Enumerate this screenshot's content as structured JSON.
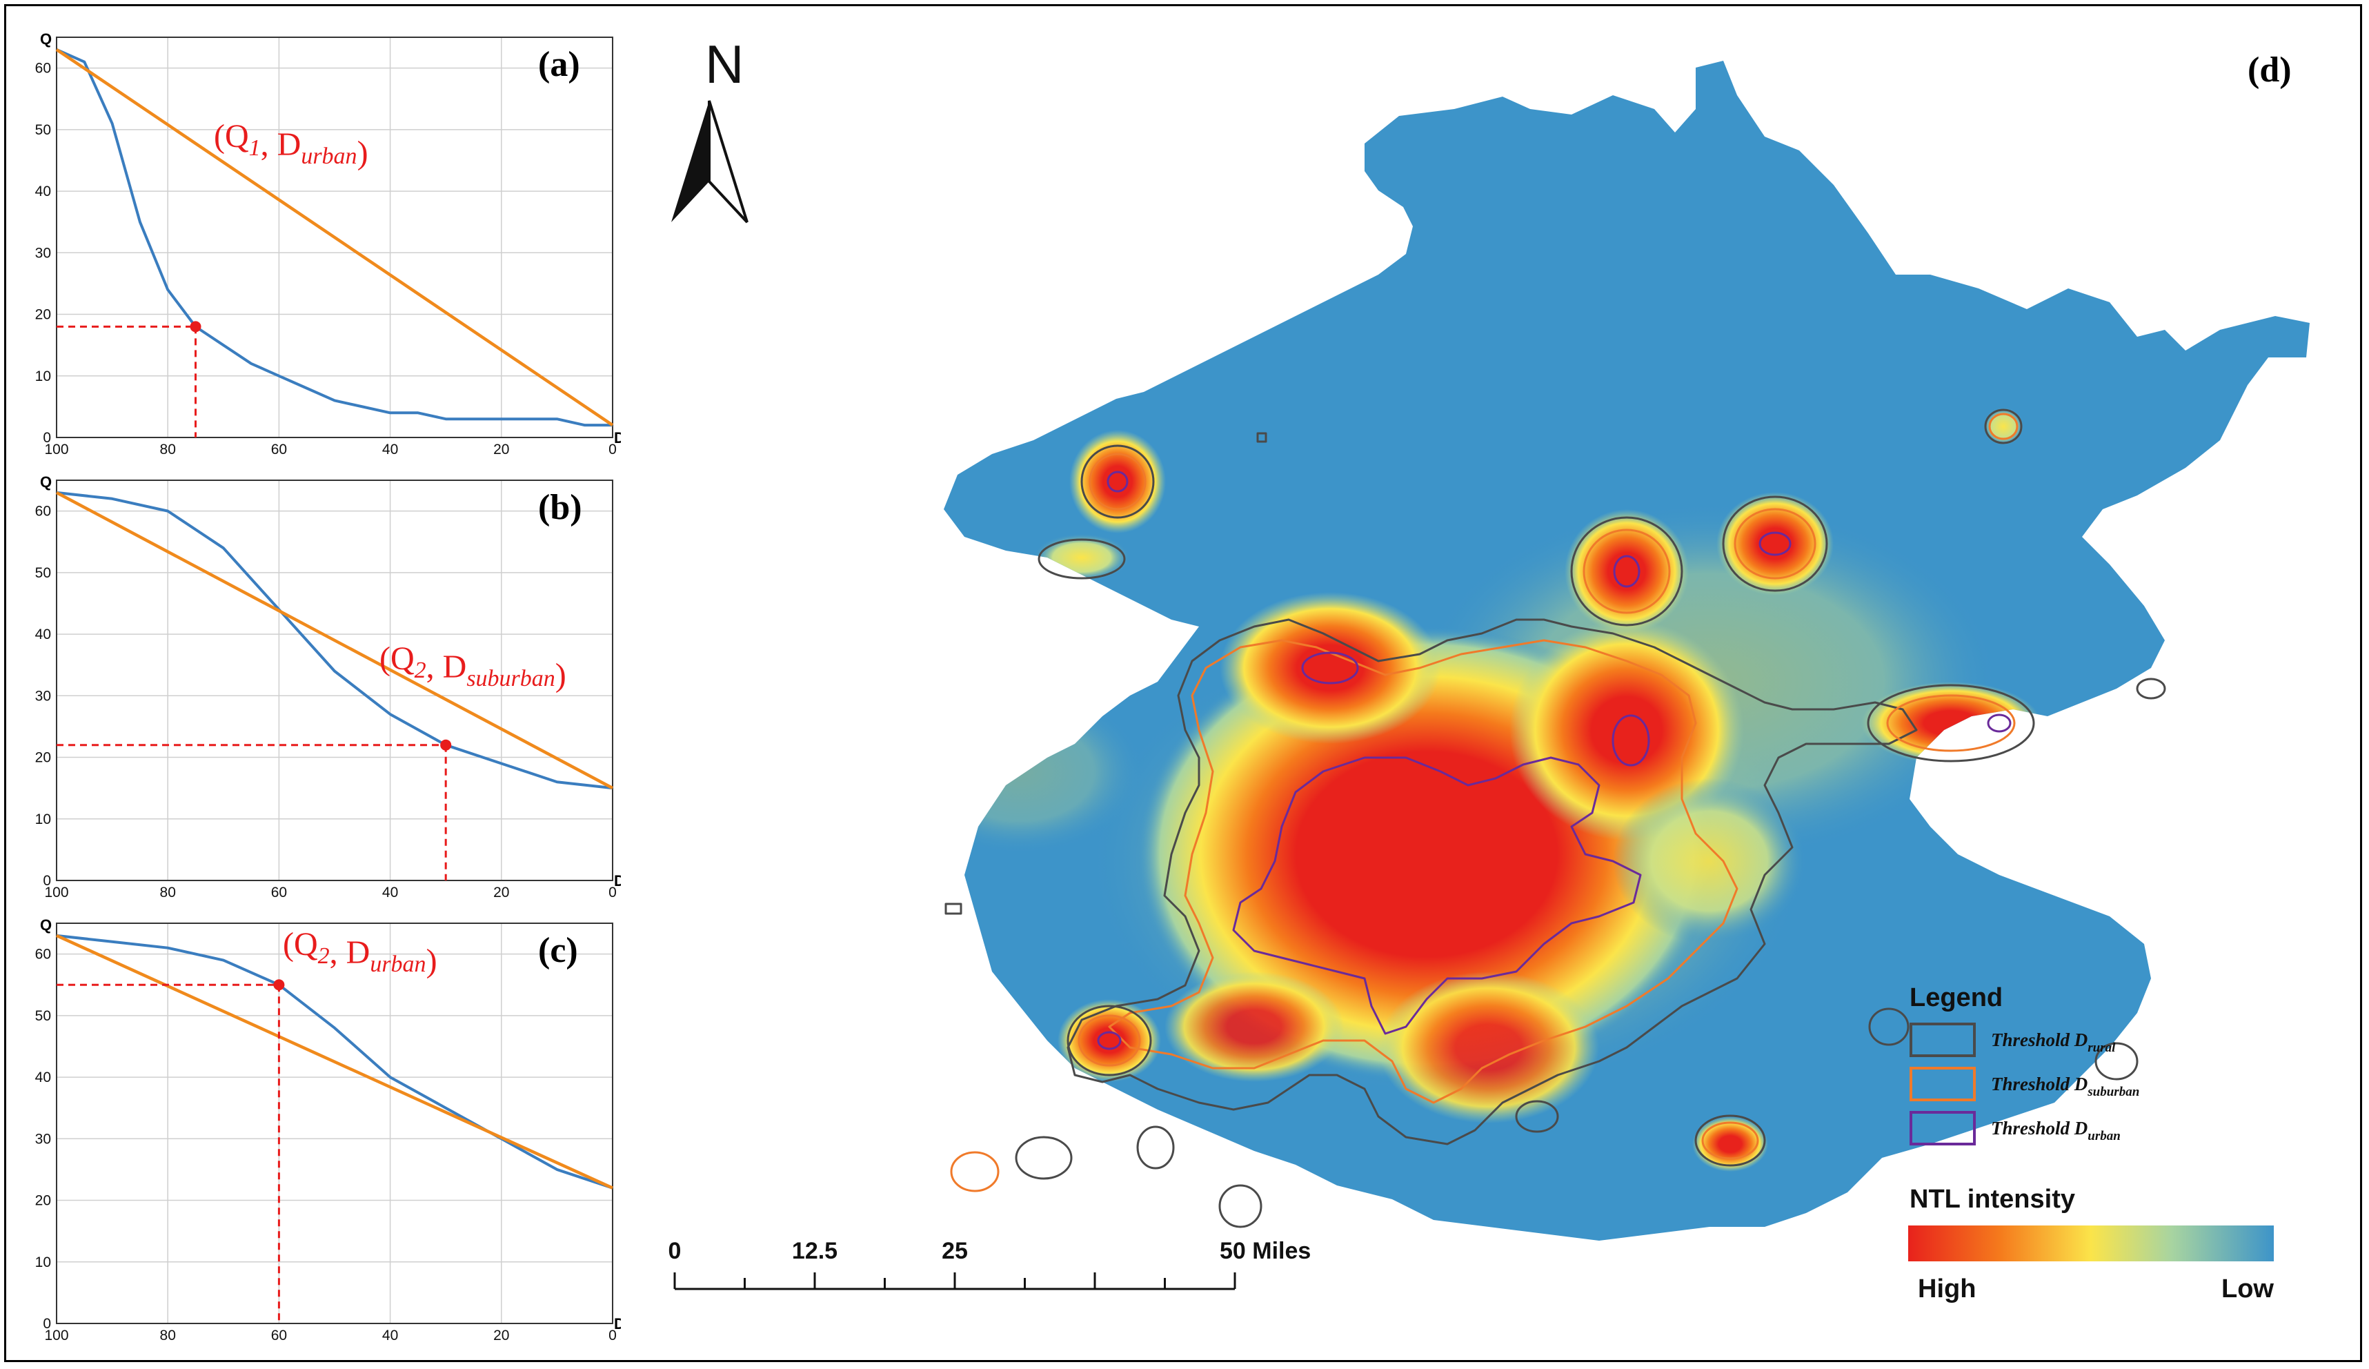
{
  "chart_data": [
    {
      "panel": "(a)",
      "type": "line",
      "xlabel": "D",
      "ylabel": "Q",
      "xlim": [
        100,
        0
      ],
      "ylim": [
        0,
        65
      ],
      "x_reversed": true,
      "xticks": [
        100,
        80,
        60,
        40,
        20,
        0
      ],
      "yticks": [
        0,
        10,
        20,
        30,
        40,
        50,
        60
      ],
      "grid": true,
      "series": [
        {
          "color": "#3a7dbf",
          "x": [
            100,
            95,
            90,
            85,
            80,
            75,
            70,
            65,
            60,
            55,
            50,
            45,
            40,
            35,
            30,
            25,
            20,
            15,
            10,
            5,
            0
          ],
          "y": [
            63,
            61,
            51,
            35,
            24,
            18,
            15,
            12,
            10,
            8,
            6,
            5,
            4,
            4,
            3,
            3,
            3,
            3,
            3,
            2,
            2
          ]
        },
        {
          "color": "#f08a1c",
          "x": [
            100,
            0
          ],
          "y": [
            63,
            2
          ]
        }
      ],
      "marker": {
        "x": 75,
        "y": 18,
        "color": "#e81c1c"
      },
      "annotation": {
        "text": "(Q",
        "sub1": "1",
        "mid": ", D",
        "sub2": "urban",
        "end": ")",
        "color": "#e81c1c"
      }
    },
    {
      "panel": "(b)",
      "type": "line",
      "xlabel": "D",
      "ylabel": "Q",
      "xlim": [
        100,
        0
      ],
      "ylim": [
        0,
        65
      ],
      "x_reversed": true,
      "xticks": [
        100,
        80,
        60,
        40,
        20,
        0
      ],
      "yticks": [
        0,
        10,
        20,
        30,
        40,
        50,
        60
      ],
      "grid": true,
      "series": [
        {
          "color": "#3a7dbf",
          "x": [
            100,
            90,
            80,
            70,
            60,
            50,
            40,
            30,
            20,
            10,
            0
          ],
          "y": [
            63,
            62,
            60,
            54,
            44,
            34,
            27,
            22,
            19,
            16,
            15
          ]
        },
        {
          "color": "#f08a1c",
          "x": [
            100,
            0
          ],
          "y": [
            63,
            15
          ]
        }
      ],
      "marker": {
        "x": 30,
        "y": 22,
        "color": "#e81c1c"
      },
      "annotation": {
        "text": "(Q",
        "sub1": "2",
        "mid": ", D",
        "sub2": "suburban",
        "end": ")",
        "color": "#e81c1c"
      }
    },
    {
      "panel": "(c)",
      "type": "line",
      "xlabel": "D",
      "ylabel": "Q",
      "xlim": [
        100,
        0
      ],
      "ylim": [
        0,
        65
      ],
      "x_reversed": true,
      "xticks": [
        100,
        80,
        60,
        40,
        20,
        0
      ],
      "yticks": [
        0,
        10,
        20,
        30,
        40,
        50,
        60
      ],
      "grid": true,
      "series": [
        {
          "color": "#3a7dbf",
          "x": [
            100,
            90,
            80,
            70,
            60,
            50,
            40,
            30,
            20,
            10,
            0
          ],
          "y": [
            63,
            62,
            61,
            59,
            55,
            48,
            40,
            35,
            30,
            25,
            22
          ]
        },
        {
          "color": "#f08a1c",
          "x": [
            100,
            0
          ],
          "y": [
            63,
            22
          ]
        }
      ],
      "marker": {
        "x": 60,
        "y": 55,
        "color": "#e81c1c"
      },
      "annotation": {
        "text": "(Q",
        "sub1": "2",
        "mid": ", D",
        "sub2": "urban",
        "end": ")",
        "color": "#e81c1c"
      }
    }
  ],
  "map": {
    "panel": "(d)",
    "north": "N",
    "legend_title": "Legend",
    "legend_items": [
      {
        "text": "Threshold D",
        "sub": "rural",
        "color": "#4a4a4a"
      },
      {
        "text": "Threshold D",
        "sub": "suburban",
        "color": "#f07a2a"
      },
      {
        "text": "Threshold D",
        "sub": "urban",
        "color": "#6a2a9a"
      }
    ],
    "intensity_title": "NTL intensity",
    "intensity_high": "High",
    "intensity_low": "Low",
    "gradient_colors": [
      "#e8221c",
      "#f57a1c",
      "#fbe44a",
      "#a8d4a0",
      "#3d94c9"
    ],
    "low_color": "#3d94c9",
    "scale_labels": [
      "0",
      "12.5",
      "25",
      "50 Miles"
    ],
    "scale_values": [
      0,
      12.5,
      25,
      50
    ]
  }
}
